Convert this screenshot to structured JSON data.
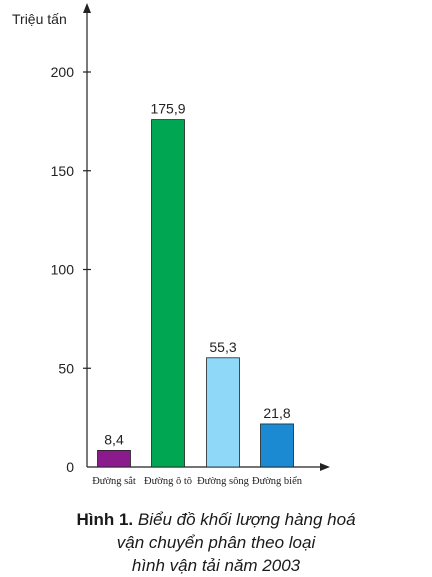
{
  "chart_data": {
    "type": "bar",
    "ylabel": "Triệu tấn",
    "ylim": [
      0,
      200
    ],
    "yticks": [
      0,
      50,
      100,
      150,
      200
    ],
    "categories": [
      "Đường sắt",
      "Đường ô tô",
      "Đường sông",
      "Đường biển"
    ],
    "values": [
      8.4,
      175.9,
      55.3,
      21.8
    ],
    "value_labels": [
      "8,4",
      "175,9",
      "55,3",
      "21,8"
    ],
    "colors": [
      "#8b1a8c",
      "#00a651",
      "#8fd8f7",
      "#1b8ad2"
    ],
    "grid": false,
    "legend": "none"
  },
  "caption": {
    "label": "Hình 1.",
    "line1": "Biểu đồ khối lượng hàng hoá",
    "line2": "vận chuyển phân theo loại",
    "line3": "hình vận tải năm 2003"
  }
}
